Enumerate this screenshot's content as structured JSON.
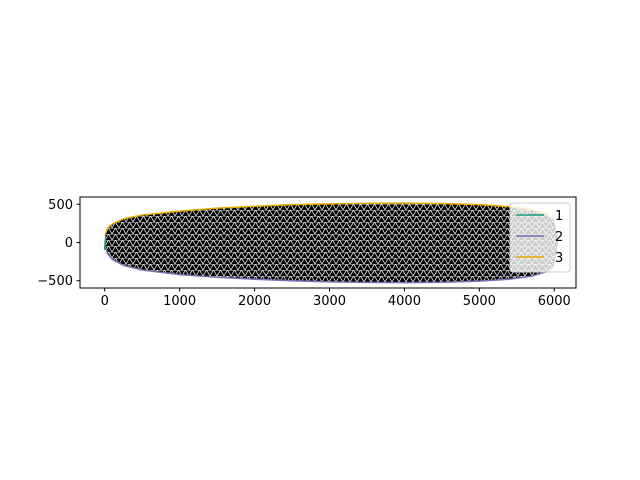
{
  "chart_data": {
    "type": "line",
    "title": "",
    "xlabel": "",
    "ylabel": "",
    "xlim": [
      -330,
      6290
    ],
    "ylim": [
      -595,
      595
    ],
    "xticks": [
      0,
      1000,
      2000,
      3000,
      4000,
      5000,
      6000
    ],
    "yticks": [
      500,
      0,
      -500
    ],
    "xtick_labels": [
      "0",
      "1000",
      "2000",
      "3000",
      "4000",
      "5000",
      "6000"
    ],
    "ytick_labels": [
      "500",
      "0",
      "−500"
    ],
    "grid": false,
    "legend_position": "upper right",
    "mesh": {
      "description_note": "dense triangulated mesh filling the outline, drawn in black with white gaps",
      "color": "#000000"
    },
    "series": [
      {
        "name": "1",
        "color": "#1b9e77",
        "x": [
          0,
          0,
          5,
          10
        ],
        "y": [
          -100,
          -50,
          0,
          60
        ]
      },
      {
        "name": "2",
        "color": "#7570b3",
        "x": [
          10,
          40,
          100,
          250,
          500,
          1000,
          1500,
          2000,
          2500,
          3000,
          3500,
          4000,
          4500,
          5000,
          5400,
          5700,
          5900,
          5980
        ],
        "y": [
          -60,
          -150,
          -220,
          -300,
          -360,
          -420,
          -455,
          -480,
          -500,
          -515,
          -522,
          -525,
          -520,
          -505,
          -480,
          -440,
          -380,
          -320
        ]
      },
      {
        "name": "3",
        "color": "#e6ab02",
        "x": [
          5,
          40,
          100,
          250,
          500,
          1000,
          1500,
          2000,
          2500,
          3000,
          3500,
          4000,
          4500,
          5000,
          5400,
          5700,
          5900,
          5980
        ],
        "y": [
          100,
          190,
          240,
          310,
          360,
          410,
          450,
          475,
          495,
          505,
          512,
          515,
          510,
          495,
          470,
          430,
          370,
          310
        ]
      }
    ],
    "right_cap": {
      "x": [
        5980,
        6020,
        6040,
        6020,
        5980
      ],
      "y": [
        -320,
        -150,
        0,
        150,
        310
      ]
    }
  }
}
